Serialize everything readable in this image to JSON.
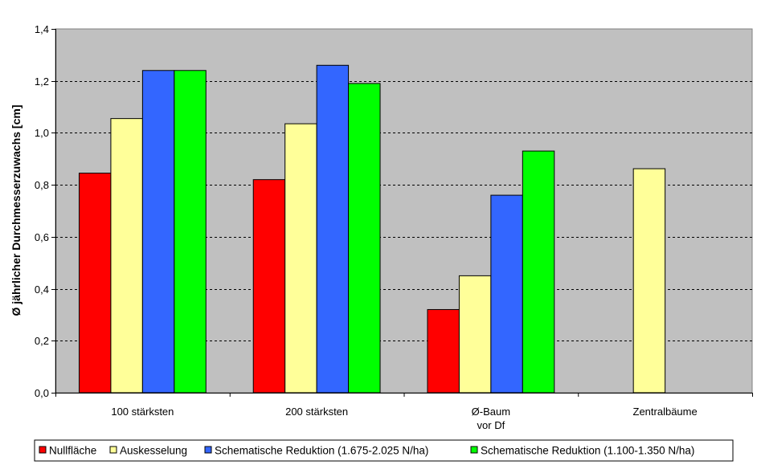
{
  "chart_data": {
    "type": "bar",
    "title": "",
    "xlabel": "",
    "ylabel": "Ø jährlicher Durchmesserzuwachs [cm]",
    "ylim": [
      0,
      1.4
    ],
    "yticks": [
      "0,0",
      "0,2",
      "0,4",
      "0,6",
      "0,8",
      "1,0",
      "1,2",
      "1,4"
    ],
    "grid": true,
    "legend_position": "bottom",
    "plot_background": "#c0c0c0",
    "categories": [
      [
        "100 stärksten"
      ],
      [
        "200 stärksten"
      ],
      [
        "Ø-Baum",
        "vor Df"
      ],
      [
        "Zentralbäume"
      ]
    ],
    "series": [
      {
        "name": "Nullfläche",
        "color": "#ff0000",
        "values": [
          0.845,
          0.82,
          0.32,
          null
        ]
      },
      {
        "name": "Auskesselung",
        "color": "#ffff99",
        "values": [
          1.055,
          1.035,
          0.45,
          0.862
        ]
      },
      {
        "name": "Schematische Reduktion (1.675-2.025 N/ha)",
        "color": "#3366ff",
        "values": [
          1.24,
          1.26,
          0.76,
          null
        ]
      },
      {
        "name": "Schematische Reduktion (1.100-1.350 N/ha)",
        "color": "#00ff00",
        "values": [
          1.24,
          1.19,
          0.93,
          null
        ]
      }
    ]
  }
}
